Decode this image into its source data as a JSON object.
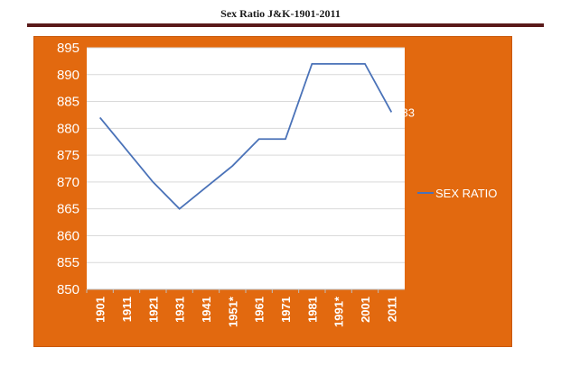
{
  "title": "Sex Ratio J&K-1901-2011",
  "colors": {
    "frame": "#e2690f",
    "plot_area": "#ffffff",
    "line": "#4a72b8",
    "gridline": "#d9d9d9",
    "text": "#ffffff"
  },
  "chart_data": {
    "type": "line",
    "categories": [
      "1901",
      "1911",
      "1921",
      "1931",
      "1941",
      "1951*",
      "1961",
      "1971",
      "1981",
      "1991*",
      "2001",
      "2011"
    ],
    "series": [
      {
        "name": "SEX RATIO",
        "values": [
          882,
          876,
          870,
          865,
          869,
          873,
          878,
          878,
          892,
          892,
          892,
          883
        ]
      }
    ],
    "ylim": [
      850,
      895
    ],
    "ytick_step": 5,
    "grid": true,
    "legend": "right",
    "data_labels": [
      {
        "index": 11,
        "text": "883"
      }
    ]
  }
}
